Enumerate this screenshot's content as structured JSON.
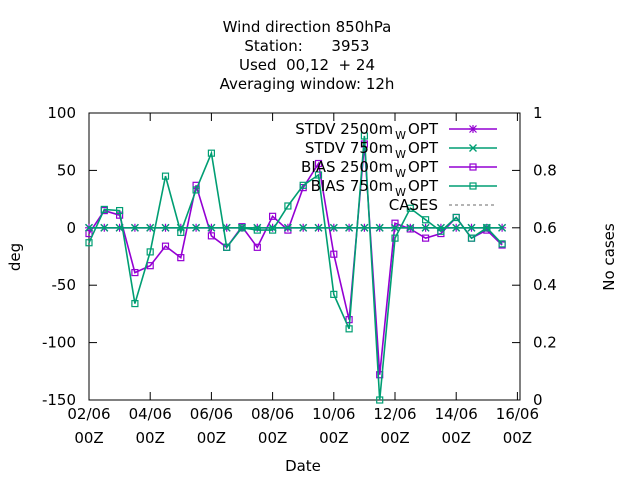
{
  "chart_data": {
    "type": "line",
    "title_lines": [
      "Wind direction 850hPa",
      "Station:      3953",
      "Used  00,12  + 24",
      "Averaging window: 12h"
    ],
    "xlabel": "Date",
    "ylabel": "deg",
    "y2label": "No cases",
    "ylim": [
      -150,
      100
    ],
    "y2lim": [
      0,
      1
    ],
    "yticks": [
      "100",
      "50",
      "0",
      "-50",
      "-100",
      "-150"
    ],
    "y2ticks": [
      "1",
      "0.8",
      "0.6",
      "0.4",
      "0.2",
      "0"
    ],
    "xticks": [
      {
        "l1": "02/06",
        "l2": "00Z"
      },
      {
        "l1": "04/06",
        "l2": "00Z"
      },
      {
        "l1": "06/06",
        "l2": "00Z"
      },
      {
        "l1": "08/06",
        "l2": "00Z"
      },
      {
        "l1": "10/06",
        "l2": "00Z"
      },
      {
        "l1": "12/06",
        "l2": "00Z"
      },
      {
        "l1": "14/06",
        "l2": "00Z"
      },
      {
        "l1": "16/06",
        "l2": "00Z"
      }
    ],
    "x_start_date": "02/06 00Z",
    "x_step_hours": 12,
    "legend_position": "top-right",
    "series": [
      {
        "name": "STDV 2500m",
        "name_sub": "W",
        "name_suffix": "OPT",
        "color": "#9400d3",
        "marker": "star",
        "x_index": [
          0,
          1,
          2,
          3,
          4,
          5,
          6,
          7,
          8,
          9,
          10,
          11,
          12,
          13,
          14,
          15,
          16,
          17,
          18,
          19,
          20,
          21,
          22,
          23,
          24,
          25,
          26,
          27
        ],
        "values": [
          0,
          0,
          0,
          0,
          0,
          0,
          0,
          0,
          0,
          0,
          0,
          0,
          0,
          0,
          0,
          0,
          0,
          0,
          0,
          0,
          0,
          0,
          0,
          0,
          0,
          0,
          0,
          0
        ]
      },
      {
        "name": "STDV 750m",
        "name_sub": "W",
        "name_suffix": "OPT",
        "color": "#009e73",
        "marker": "x",
        "x_index": [
          0,
          1,
          2,
          3,
          4,
          5,
          6,
          7,
          8,
          9,
          10,
          11,
          12,
          13,
          14,
          15,
          16,
          17,
          18,
          19,
          20,
          21,
          22,
          23,
          24,
          25,
          26,
          27
        ],
        "values": [
          0,
          0,
          0,
          0,
          0,
          0,
          0,
          0,
          0,
          0,
          0,
          0,
          0,
          0,
          0,
          0,
          0,
          0,
          0,
          0,
          0,
          0,
          0,
          0,
          0,
          0,
          0,
          0
        ]
      },
      {
        "name": "BIAS 2500m",
        "name_sub": "W",
        "name_suffix": "OPT",
        "color": "#9400d3",
        "marker": "square",
        "x_index": [
          0,
          1,
          2,
          3,
          4,
          5,
          6,
          7,
          8,
          9,
          10,
          11,
          12,
          13,
          14,
          15,
          16,
          17,
          18,
          19,
          20,
          21,
          22,
          23,
          24,
          25,
          26,
          27
        ],
        "values": [
          -5,
          15,
          11,
          -39,
          -33,
          -16,
          -26,
          37,
          -7,
          -17,
          1,
          -17,
          10,
          -2,
          35,
          56,
          -23,
          -80,
          73,
          -128,
          4,
          -1,
          -9,
          -5,
          9,
          -9,
          -2,
          -15
        ]
      },
      {
        "name": "BIAS 750m",
        "name_sub": "W",
        "name_suffix": "OPT",
        "color": "#009e73",
        "marker": "square",
        "x_index": [
          0,
          1,
          2,
          3,
          4,
          5,
          6,
          7,
          8,
          9,
          10,
          11,
          12,
          13,
          14,
          15,
          16,
          17,
          18,
          19,
          20,
          21,
          22,
          23,
          24,
          25,
          26,
          27
        ],
        "values": [
          -13,
          16,
          15,
          -66,
          -21,
          45,
          -4,
          33,
          65,
          -17,
          0,
          -2,
          -2,
          19,
          37,
          46,
          -58,
          -88,
          80,
          -150,
          -9,
          17,
          7,
          -3,
          9,
          -9,
          0,
          -14
        ]
      },
      {
        "name": "CASES",
        "color": "#888888",
        "marker": "none",
        "dashed": true,
        "values": []
      }
    ]
  }
}
